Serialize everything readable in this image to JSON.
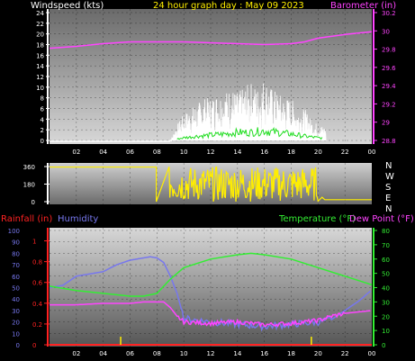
{
  "title": "24 hour graph day : May 09 2023",
  "colors": {
    "white": "#ffffff",
    "magenta": "#ff44ff",
    "green": "#22dd22",
    "yellow": "#ffee00",
    "blue": "#7777ee",
    "red": "#ff2222",
    "lime": "#33ee33"
  },
  "x_hour_labels": [
    "02",
    "04",
    "06",
    "08",
    "10",
    "12",
    "14",
    "16",
    "18",
    "20",
    "22",
    "00"
  ],
  "chart_data": [
    {
      "type": "line",
      "name": "wind-baro",
      "left_axis": {
        "label": "Windspeed (kts)",
        "ticks": [
          "0",
          "2",
          "4",
          "6",
          "8",
          "10",
          "12",
          "14",
          "16",
          "18",
          "20",
          "22",
          "24"
        ],
        "min": 0,
        "max": 24
      },
      "right_axis": {
        "label": "Barometer (in)",
        "ticks": [
          "28.8",
          "29",
          "29.2",
          "29.4",
          "29.6",
          "29.8",
          "30",
          "30.2"
        ],
        "min": 28.8,
        "max": 30.2
      },
      "series": [
        {
          "name": "Windspeed",
          "axis": "left",
          "x": [
            0,
            9,
            9.5,
            10,
            10.5,
            11,
            11.5,
            12,
            12.5,
            13,
            13.5,
            14,
            14.5,
            15,
            15.5,
            16,
            16.5,
            17,
            17.5,
            18,
            18.5,
            19,
            19.5,
            20,
            24
          ],
          "y": [
            0,
            0,
            3,
            5,
            6,
            7,
            8,
            8,
            9,
            9,
            10,
            9,
            10,
            11,
            10,
            12,
            10,
            9,
            8,
            8,
            6,
            6,
            4,
            3,
            0
          ]
        },
        {
          "name": "Gust",
          "axis": "left",
          "x": [
            0,
            9,
            10,
            11,
            12,
            13,
            14,
            15,
            16,
            17,
            18,
            19,
            20,
            24
          ],
          "y": [
            0,
            0,
            0.5,
            0.8,
            1,
            1.2,
            1.5,
            1.5,
            1.8,
            1.5,
            1.2,
            0.8,
            0.5,
            0
          ]
        },
        {
          "name": "Barometer",
          "axis": "right",
          "x": [
            0,
            2,
            4,
            6,
            8,
            10,
            12,
            14,
            16,
            18,
            19,
            20,
            22,
            24
          ],
          "y": [
            29.81,
            29.83,
            29.86,
            29.88,
            29.88,
            29.88,
            29.87,
            29.86,
            29.85,
            29.86,
            29.88,
            29.92,
            29.96,
            29.99
          ]
        }
      ]
    },
    {
      "type": "line",
      "name": "wind-direction",
      "left_axis": {
        "ticks": [
          "0",
          "180",
          "360"
        ],
        "min": 0,
        "max": 360
      },
      "right_axis": {
        "ticks": [
          "N",
          "W",
          "S",
          "E",
          "N"
        ]
      },
      "series": [
        {
          "name": "Wind direction",
          "x": [
            0,
            7.9,
            8,
            8.5,
            9,
            9.5,
            10,
            11,
            12,
            13,
            14,
            15,
            16,
            17,
            18,
            19,
            19.5,
            20,
            20.4,
            20.5,
            24
          ],
          "y": [
            355,
            355,
            0,
            0,
            345,
            20,
            320,
            40,
            300,
            90,
            310,
            60,
            330,
            100,
            300,
            50,
            320,
            70,
            45,
            20,
            20
          ]
        }
      ]
    },
    {
      "type": "line",
      "name": "temp-humidity",
      "left_axis": {
        "label_rain": "Rainfall (in)",
        "label_humidity": "Humidity",
        "humidity_ticks": [
          "0",
          "10",
          "20",
          "30",
          "40",
          "50",
          "60",
          "70",
          "80",
          "90",
          "100"
        ],
        "rain_ticks": [
          "0",
          "0.2",
          "0.4",
          "0.6",
          "0.8",
          "1"
        ],
        "humidity_min": 0,
        "humidity_max": 100
      },
      "right_axis": {
        "label_temp": "Temperature (°F)",
        "label_dew": "Dew Point (°F)",
        "ticks": [
          "0",
          "10",
          "20",
          "30",
          "40",
          "50",
          "60",
          "70",
          "80"
        ],
        "min": 0,
        "max": 80
      },
      "series": [
        {
          "name": "Humidity",
          "axis": "humidity",
          "x": [
            0,
            1,
            2,
            3,
            4,
            5,
            6,
            7,
            7.5,
            8,
            8.5,
            9,
            9.5,
            10,
            12,
            14,
            16,
            18,
            20,
            21,
            22,
            23,
            24
          ],
          "y": [
            50,
            52,
            60,
            62,
            64,
            70,
            74,
            76,
            77,
            76,
            72,
            60,
            45,
            23,
            20,
            18,
            16,
            18,
            20,
            22,
            30,
            38,
            48
          ]
        },
        {
          "name": "Temperature",
          "axis": "temp",
          "x": [
            0,
            2,
            4,
            6,
            7,
            8,
            9,
            10,
            12,
            14,
            15,
            16,
            18,
            20,
            22,
            24
          ],
          "y": [
            41,
            38,
            36,
            34,
            34,
            36,
            46,
            54,
            60,
            63,
            64,
            63,
            60,
            54,
            48,
            42
          ]
        },
        {
          "name": "Dew Point",
          "axis": "temp",
          "x": [
            0,
            2,
            4,
            6,
            7,
            8,
            8.5,
            9,
            9.5,
            10,
            12,
            14,
            16,
            18,
            19,
            20,
            21,
            22,
            23,
            24
          ],
          "y": [
            28,
            28,
            29,
            29,
            30,
            30,
            30,
            26,
            20,
            16,
            15,
            16,
            14,
            15,
            16,
            17,
            20,
            22,
            23,
            24
          ]
        },
        {
          "name": "Rainfall",
          "axis": "rain",
          "x": [
            0,
            24
          ],
          "y": [
            0,
            0
          ]
        }
      ],
      "rain_markers_hours": [
        5.3,
        19.5
      ]
    }
  ]
}
